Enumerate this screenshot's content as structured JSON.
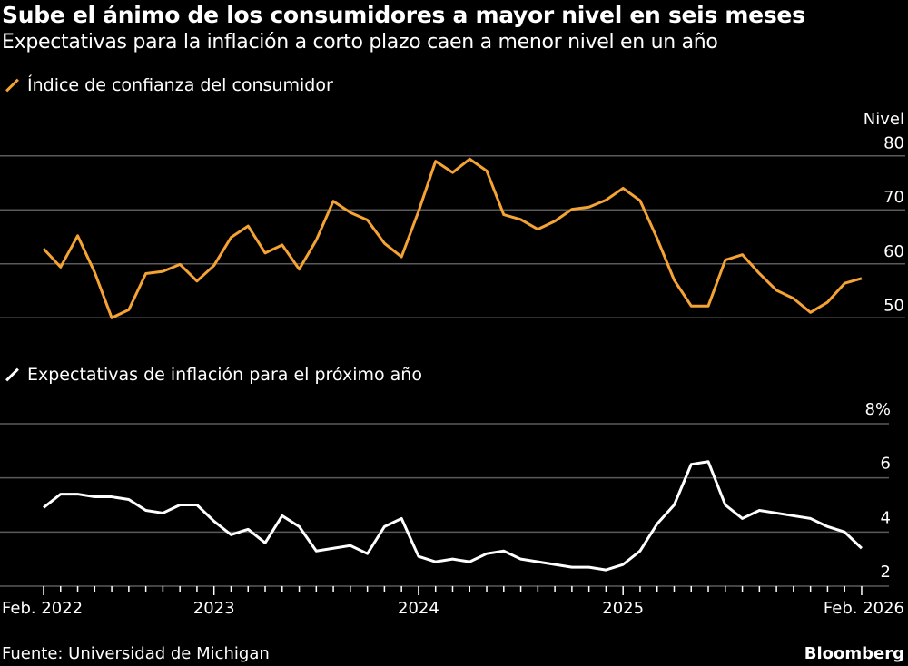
{
  "title": "Sube el ánimo de los consumidores a mayor nivel en seis meses",
  "subtitle": "Expectativas para la inflación a corto plazo caen a menor nivel en un año",
  "source": "Fuente: Universidad de Michigan",
  "brand": "Bloomberg",
  "chart_data": [
    {
      "type": "line",
      "series": [
        {
          "name": "Índice de confianza del consumidor",
          "color": "#f5a334",
          "values": [
            62.8,
            59.4,
            65.2,
            58.4,
            50.0,
            51.5,
            58.2,
            58.6,
            59.9,
            56.8,
            59.7,
            64.9,
            67.0,
            62.0,
            63.5,
            59.0,
            64.4,
            71.6,
            69.5,
            68.1,
            63.8,
            61.3,
            69.7,
            79.0,
            76.9,
            79.4,
            77.2,
            69.1,
            68.2,
            66.4,
            67.9,
            70.1,
            70.5,
            71.8,
            74.0,
            71.7,
            64.7,
            57.0,
            52.2,
            52.2,
            60.7,
            61.7,
            58.2,
            55.1,
            53.6,
            51.0,
            52.9,
            56.4,
            57.3
          ]
        }
      ],
      "x_start": "2022-02",
      "x_end": "2026-02",
      "frequency": "monthly",
      "ylabel": "Nivel",
      "ylim": [
        50,
        80
      ],
      "yticks": [
        "80",
        "70",
        "60",
        "50"
      ],
      "grid": true,
      "legend": "top-left"
    },
    {
      "type": "line",
      "series": [
        {
          "name": "Expectativas de inflación para el próximo año",
          "color": "#ffffff",
          "values": [
            4.9,
            5.4,
            5.4,
            5.3,
            5.3,
            5.2,
            4.8,
            4.7,
            5.0,
            5.0,
            4.4,
            3.9,
            4.1,
            3.6,
            4.6,
            4.2,
            3.3,
            3.4,
            3.5,
            3.2,
            4.2,
            4.5,
            3.1,
            2.9,
            3.0,
            2.9,
            3.2,
            3.3,
            3.0,
            2.9,
            2.8,
            2.7,
            2.7,
            2.6,
            2.8,
            3.3,
            4.3,
            5.0,
            6.5,
            6.6,
            5.0,
            4.5,
            4.8,
            4.7,
            4.6,
            4.5,
            4.2,
            4.0,
            3.4
          ]
        }
      ],
      "ylim": [
        2,
        8
      ],
      "yticks": [
        "8%",
        "6",
        "4",
        "2"
      ],
      "xticks": [
        "Feb. 2022",
        "2023",
        "2024",
        "2025",
        "Feb. 2026"
      ],
      "grid": true,
      "legend": "top-left"
    }
  ]
}
